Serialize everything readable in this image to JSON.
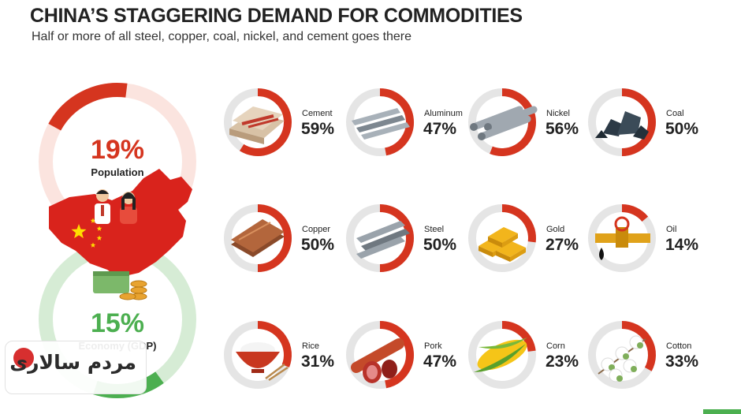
{
  "header": {
    "title": "CHINA’S STAGGERING DEMAND FOR COMMODITIES",
    "subtitle": "Half or more of all steel, copper, coal, nickel, and cement goes there"
  },
  "colors": {
    "accent_red": "#d5351f",
    "track_gray": "#e5e5e5",
    "population_track": "#fbe4df",
    "economy_green": "#4caf50",
    "economy_track": "#d6ecd5",
    "china_red": "#d9231c",
    "star_yellow": "#ffde00",
    "text_dark": "#222222"
  },
  "chart_data": {
    "type": "donut",
    "big_rings": [
      {
        "label": "Population",
        "value": 19,
        "display": "19%"
      },
      {
        "label": "Economy (GDP)",
        "value": 15,
        "display": "15%"
      }
    ],
    "commodities": [
      {
        "name": "Cement",
        "value": 59,
        "display": "59%",
        "icon": "cement-bags-icon"
      },
      {
        "name": "Aluminum",
        "value": 47,
        "display": "47%",
        "icon": "aluminum-bars-icon"
      },
      {
        "name": "Nickel",
        "value": 56,
        "display": "56%",
        "icon": "nickel-pipes-icon"
      },
      {
        "name": "Coal",
        "value": 50,
        "display": "50%",
        "icon": "coal-lumps-icon"
      },
      {
        "name": "Copper",
        "value": 50,
        "display": "50%",
        "icon": "copper-sheets-icon"
      },
      {
        "name": "Steel",
        "value": 50,
        "display": "50%",
        "icon": "steel-beams-icon"
      },
      {
        "name": "Gold",
        "value": 27,
        "display": "27%",
        "icon": "gold-bars-icon"
      },
      {
        "name": "Oil",
        "value": 14,
        "display": "14%",
        "icon": "oil-pipe-icon"
      },
      {
        "name": "Rice",
        "value": 31,
        "display": "31%",
        "icon": "rice-bowl-icon"
      },
      {
        "name": "Pork",
        "value": 47,
        "display": "47%",
        "icon": "sausage-icon"
      },
      {
        "name": "Corn",
        "value": 23,
        "display": "23%",
        "icon": "corn-icon"
      },
      {
        "name": "Cotton",
        "value": 33,
        "display": "33%",
        "icon": "cotton-icon"
      }
    ]
  },
  "watermark": {
    "text": "مردم سالاری",
    "badge_icon": "badge-icon"
  }
}
